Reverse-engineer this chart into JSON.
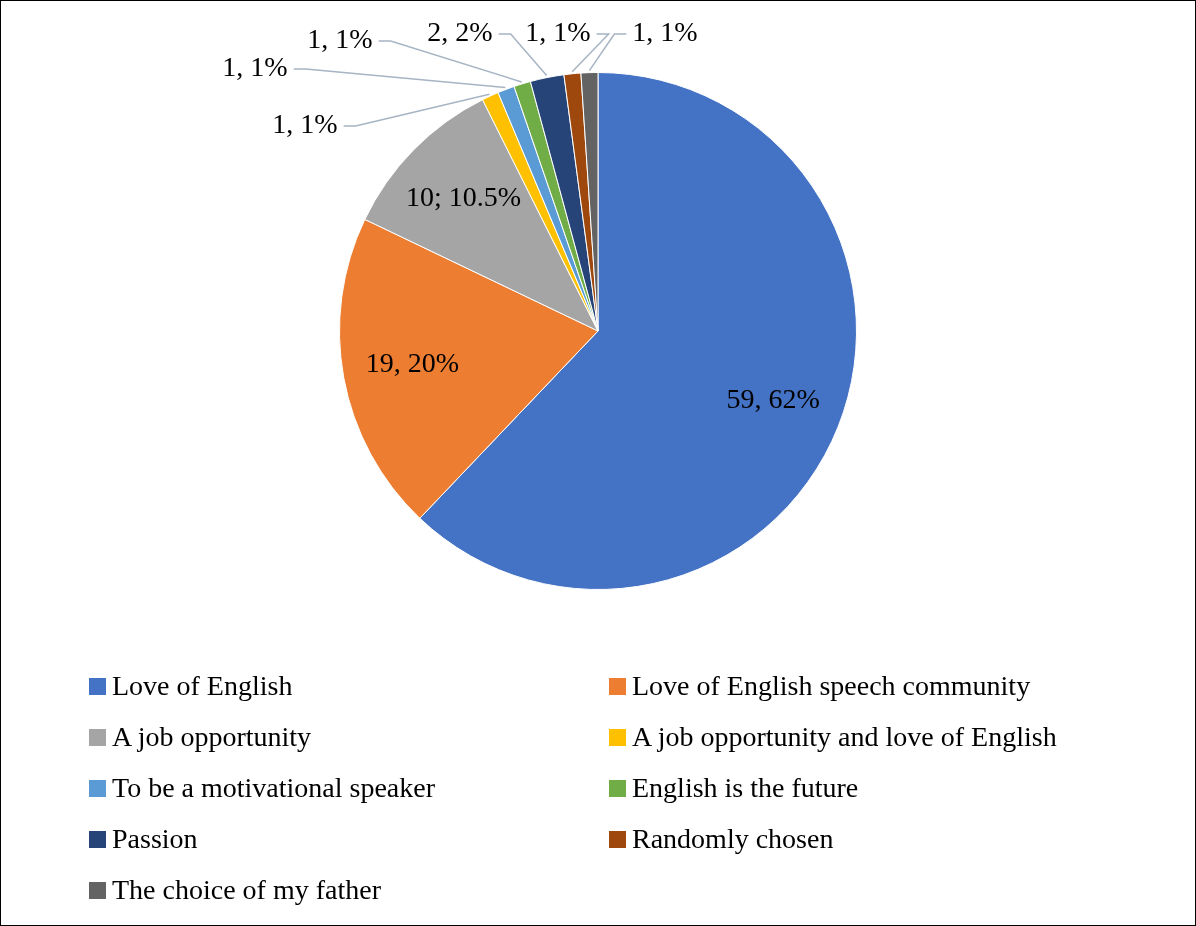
{
  "chart_data": {
    "type": "pie",
    "categories": [
      "Love of English",
      "Love of English speech community",
      "A job opportunity",
      "A job opportunity and love of English",
      "To be a motivational speaker",
      "English is the future",
      "Passion",
      "Randomly chosen",
      "The choice of my father"
    ],
    "values": [
      59,
      19,
      10,
      1,
      1,
      1,
      2,
      1,
      1
    ],
    "colors": [
      "#4472c4",
      "#ed7d31",
      "#a5a5a5",
      "#ffc000",
      "#5b9bd5",
      "#70ad47",
      "#264478",
      "#9e480e",
      "#636363"
    ],
    "value_labels": [
      "59, 62%",
      "19, 20%",
      "10; 10.5%",
      "1, 1%",
      "1, 1%",
      "1, 1%",
      "2, 2%",
      "1, 1%",
      "1, 1%"
    ],
    "legend": "bottom"
  }
}
